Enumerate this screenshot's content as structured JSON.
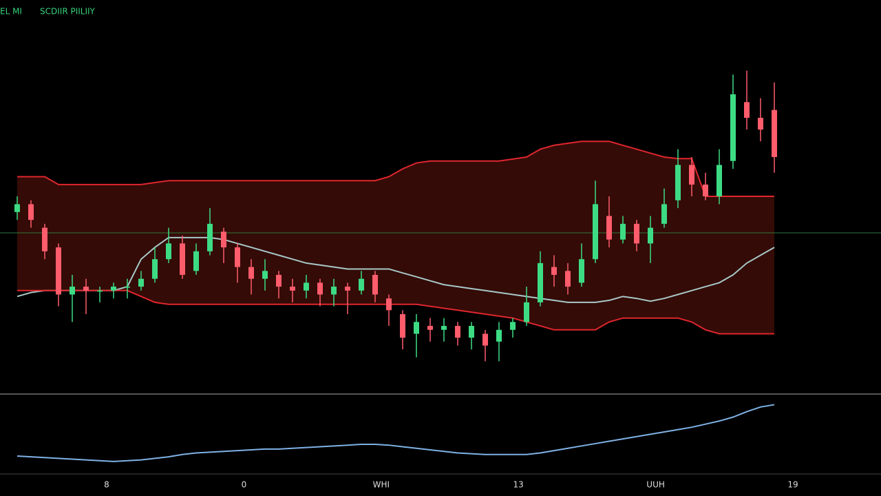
{
  "chart_data": [
    {
      "type": "candlestick",
      "title": "EL  MI",
      "subtitle": "SCDIIR PIILIIY",
      "text_color": "#37d27a",
      "open": [
        46,
        48,
        42,
        37,
        25,
        27,
        26,
        26,
        27,
        27,
        29,
        34,
        38,
        31,
        36,
        41,
        37,
        32,
        29,
        30,
        27,
        26,
        28,
        25,
        27,
        26,
        30,
        24,
        20,
        15,
        17,
        16,
        17,
        14,
        15,
        13,
        16,
        18,
        23,
        32,
        31,
        28,
        34,
        45,
        39,
        43,
        38,
        43,
        49,
        58,
        53,
        50,
        59,
        74,
        70,
        72
      ],
      "high": [
        50,
        49,
        43,
        38,
        30,
        29,
        27,
        28,
        29,
        31,
        37,
        42,
        40,
        38,
        47,
        42,
        38,
        34,
        34,
        31,
        29,
        30,
        29,
        29,
        28,
        31,
        31,
        25,
        21,
        20,
        19,
        19,
        18,
        18,
        16,
        18,
        19,
        27,
        36,
        35,
        33,
        38,
        54,
        50,
        45,
        44,
        45,
        52,
        62,
        60,
        56,
        62,
        81,
        82,
        75,
        79
      ],
      "low": [
        44,
        42,
        34,
        22,
        18,
        20,
        23,
        24,
        24,
        26,
        28,
        33,
        29,
        30,
        35,
        33,
        28,
        25,
        26,
        24,
        23,
        24,
        22,
        22,
        20,
        25,
        23,
        17,
        11,
        9,
        13,
        13,
        12,
        11,
        8,
        8,
        14,
        17,
        22,
        27,
        25,
        27,
        33,
        37,
        38,
        36,
        33,
        42,
        47,
        50,
        49,
        48,
        57,
        67,
        64,
        56
      ],
      "close": [
        48,
        44,
        36,
        25,
        27,
        26,
        26,
        27,
        27,
        29,
        34,
        38,
        30,
        36,
        43,
        37,
        32,
        29,
        31,
        27,
        26,
        28,
        25,
        27,
        26,
        29,
        25,
        21,
        14,
        18,
        16,
        17,
        14,
        17,
        12,
        16,
        18,
        23,
        33,
        30,
        27,
        34,
        48,
        39,
        43,
        38,
        42,
        48,
        58,
        53,
        50,
        58,
        76,
        70,
        67,
        60
      ],
      "up_color": "#3ddc84",
      "down_color": "#ff5c6c",
      "ylim": [
        0,
        100
      ],
      "bands": [
        {
          "color": "#e0262e",
          "values": [
            55,
            55,
            55,
            53,
            53,
            53,
            53,
            53,
            53,
            53,
            53.5,
            54,
            54,
            54,
            54,
            54,
            54,
            54,
            54,
            54,
            54,
            54,
            54,
            54,
            54,
            54,
            54,
            55,
            57,
            58.5,
            59,
            59,
            59,
            59,
            59,
            59,
            59.5,
            60,
            62,
            63,
            63.5,
            64,
            64,
            64,
            63,
            62,
            61,
            60,
            59.6,
            59.6,
            50,
            50,
            50,
            50,
            50,
            50
          ]
        },
        {
          "color": "#a8c8c8",
          "values": [
            24.5,
            25.5,
            26,
            26,
            26,
            26,
            26,
            26,
            27,
            34,
            37,
            39.5,
            39.5,
            39.5,
            39.5,
            39,
            38,
            37,
            36,
            35,
            34,
            33,
            32.5,
            32,
            31.5,
            31.5,
            31.5,
            31.5,
            30.5,
            29.5,
            28.5,
            27.5,
            27,
            26.5,
            26,
            25.5,
            25,
            24.5,
            24,
            23.5,
            23,
            23,
            23,
            23.5,
            24.5,
            24,
            23.3,
            24,
            25,
            26,
            27,
            28,
            30,
            33,
            35,
            37
          ]
        },
        {
          "color": "#e0262e",
          "values": [
            26,
            26,
            26,
            26,
            26,
            26,
            26,
            26,
            26,
            24.5,
            23,
            22.5,
            22.5,
            22.5,
            22.5,
            22.5,
            22.5,
            22.5,
            22.5,
            22.5,
            22.5,
            22.5,
            22.5,
            22.5,
            22.5,
            22.5,
            22.5,
            22.5,
            22.5,
            22.5,
            22,
            21.5,
            21,
            20.5,
            20,
            19.5,
            19,
            18,
            17,
            16,
            16,
            16,
            16,
            18,
            19,
            19,
            19,
            19,
            19,
            18,
            16,
            15,
            15,
            15,
            15,
            15
          ]
        }
      ],
      "band_fill": "#3a0c08",
      "reference_line": {
        "value": 40.7,
        "color": "#2f7a3a"
      },
      "x_labels": [
        "8",
        "0",
        "WHI",
        "13",
        "UUH",
        "19"
      ]
    },
    {
      "type": "line",
      "color": "#7fb2e6",
      "ylim": [
        0,
        100
      ],
      "values": [
        23,
        22,
        21,
        20,
        19,
        18,
        17,
        16,
        17,
        18,
        20,
        22,
        25,
        27,
        28,
        29,
        30,
        31,
        32,
        32,
        33,
        34,
        35,
        36,
        37,
        38,
        38,
        37,
        35,
        33,
        31,
        29,
        27,
        26,
        25,
        25,
        25,
        25,
        27,
        30,
        33,
        36,
        39,
        42,
        45,
        48,
        51,
        54,
        57,
        60,
        64,
        68,
        73,
        80,
        86,
        89
      ]
    }
  ]
}
